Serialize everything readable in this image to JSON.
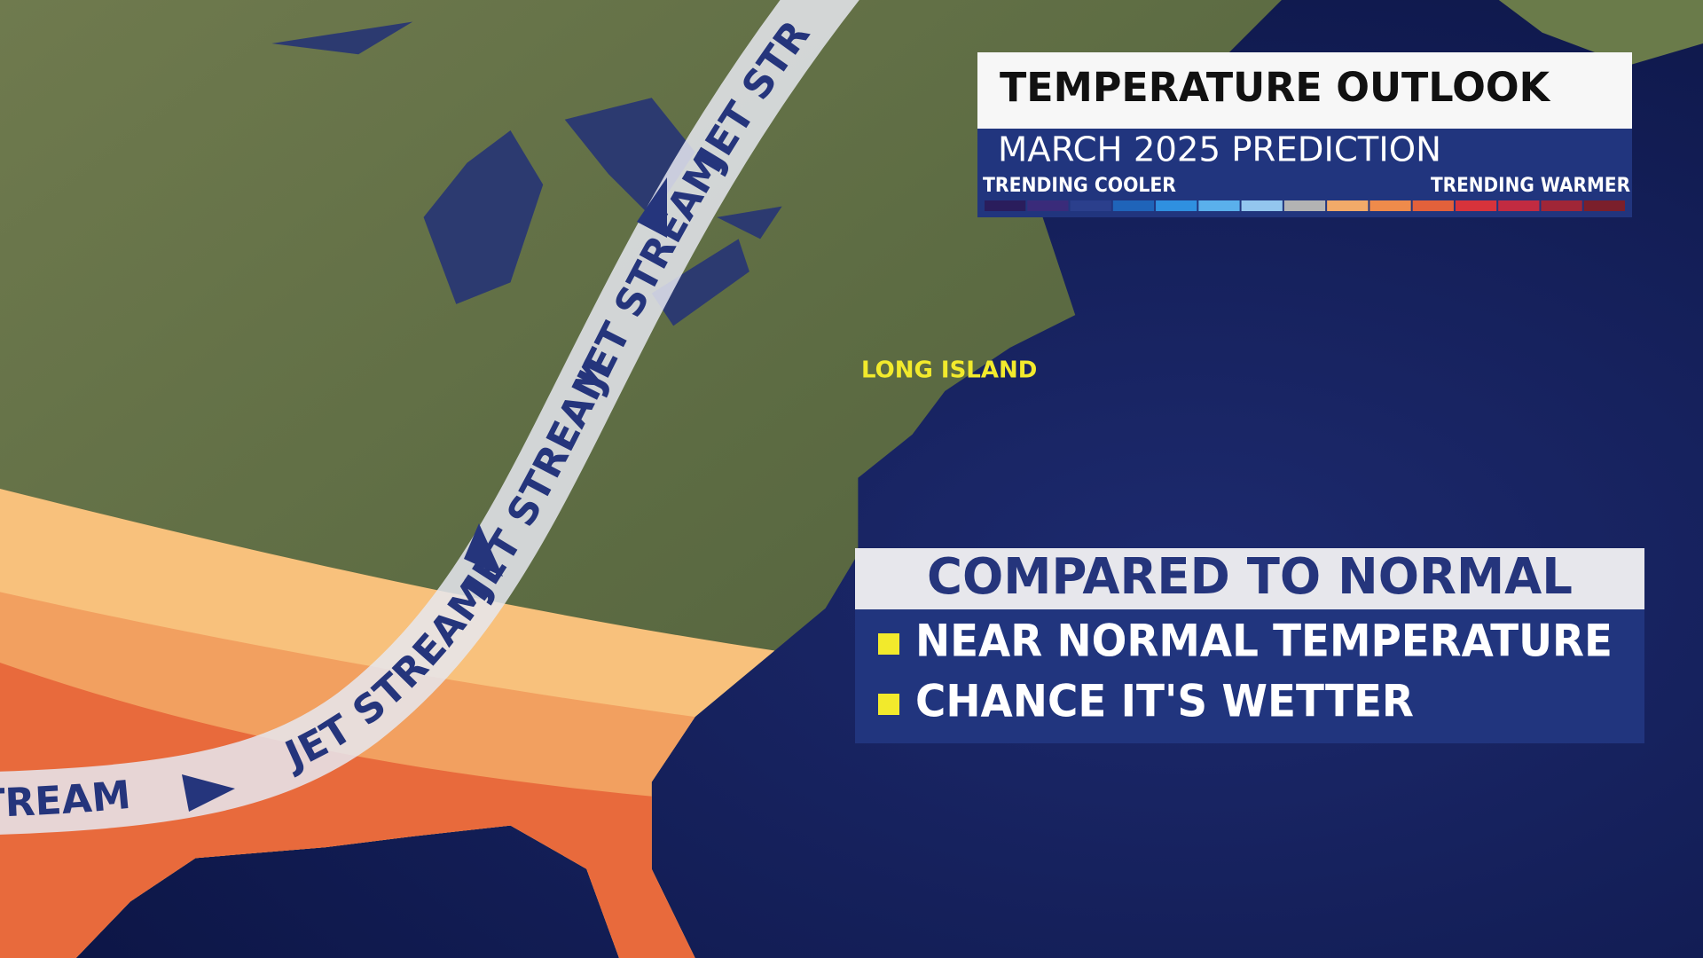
{
  "header": {
    "title": "TEMPERATURE OUTLOOK",
    "subtitle": "MARCH 2025 PREDICTION",
    "scale_low": "TRENDING COOLER",
    "scale_high": "TRENDING WARMER",
    "scale_colors": [
      "#2a1d5c",
      "#3a2b7a",
      "#2b3f8c",
      "#1f64b9",
      "#2f90e0",
      "#5ab0ec",
      "#93c6ee",
      "#b3b3b3",
      "#f2aa69",
      "#ef8b4b",
      "#e3613b",
      "#d8333b",
      "#c22b41",
      "#a02637",
      "#7b1f2b"
    ]
  },
  "map": {
    "place_label": "LONG ISLAND",
    "jet_stream_labels": [
      "TREAM",
      "JET STREAM",
      "JET STREAM",
      "JET STREAM",
      "JET STR"
    ]
  },
  "panel": {
    "title": "COMPARED TO NORMAL",
    "items": [
      "NEAR NORMAL TEMPERATURE",
      "CHANCE IT'S WETTER"
    ]
  }
}
